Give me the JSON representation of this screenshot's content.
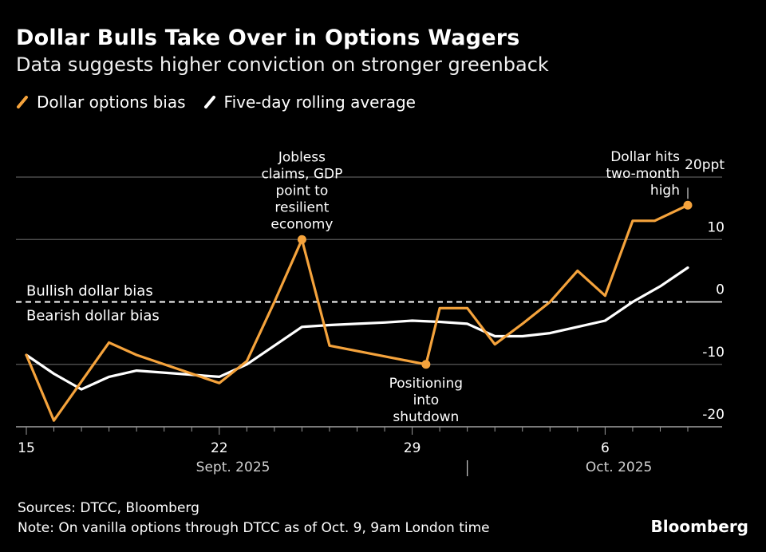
{
  "header": {
    "title": "Dollar Bulls Take Over in Options Wagers",
    "subtitle": "Data suggests higher conviction on stronger greenback"
  },
  "legend": [
    {
      "label": "Dollar options bias",
      "color": "#f5a33c"
    },
    {
      "label": "Five-day rolling average",
      "color": "#ffffff"
    }
  ],
  "footer": {
    "source": "Sources: DTCC, Bloomberg",
    "note": "Note: On vanilla options through DTCC as of Oct. 9, 9am London time",
    "brand": "Bloomberg"
  },
  "chart_data": {
    "type": "line",
    "title": "Dollar Bulls Take Over in Options Wagers",
    "ylabel": "ppt",
    "ylim": [
      -20,
      20
    ],
    "xlim": [
      15,
      39
    ],
    "y_ticks": [
      {
        "value": 20,
        "label": "20ppt"
      },
      {
        "value": 10,
        "label": "10"
      },
      {
        "value": 0,
        "label": "0"
      },
      {
        "value": -10,
        "label": "-10"
      },
      {
        "value": -20,
        "label": "-20"
      }
    ],
    "x_ticks": [
      {
        "day": 15,
        "label": "15"
      },
      {
        "day": 22,
        "label": "22"
      },
      {
        "day": 29,
        "label": "29"
      },
      {
        "day": 36,
        "label": "6"
      }
    ],
    "month_labels": [
      {
        "day": 22.5,
        "label": "Sept. 2025"
      },
      {
        "day": 36.5,
        "label": "Oct. 2025"
      }
    ],
    "month_separator_day": 31,
    "reference_labels": {
      "above": "Bullish dollar bias",
      "below": "Bearish dollar bias"
    },
    "series": [
      {
        "name": "Dollar options bias",
        "color": "#f5a33c",
        "x": [
          15,
          16,
          18,
          19,
          22,
          23,
          24,
          25,
          26,
          29.5,
          30,
          31,
          32,
          33,
          34,
          35,
          36,
          37,
          37.8,
          39
        ],
        "values": [
          -8.5,
          -19,
          -6.5,
          -8.5,
          -13,
          -9.5,
          0,
          10,
          -7,
          -10,
          -1,
          -1,
          -6.8,
          -3.5,
          0,
          5,
          1,
          13,
          13,
          15.5
        ]
      },
      {
        "name": "Five-day rolling average",
        "color": "#ffffff",
        "x": [
          15,
          16,
          17,
          18,
          19,
          22,
          23,
          24,
          25,
          26,
          27,
          28,
          29,
          30,
          31,
          32,
          33,
          34,
          35,
          36,
          37,
          38,
          39
        ],
        "values": [
          -8.5,
          -11.5,
          -14,
          -12,
          -11,
          -12,
          -10,
          -7,
          -4,
          -3.7,
          -3.5,
          -3.3,
          -3,
          -3.2,
          -3.5,
          -5.5,
          -5.5,
          -5,
          -4,
          -3,
          0,
          2.5,
          5.5
        ]
      }
    ],
    "annotations": [
      {
        "text": [
          "Jobless",
          "claims, GDP",
          "point to",
          "resilient",
          "economy"
        ],
        "series": 0,
        "x": 25,
        "y": 10,
        "position": "above"
      },
      {
        "text": [
          "Positioning",
          "into",
          "shutdown"
        ],
        "series": 0,
        "x": 29.5,
        "y": -10,
        "position": "below"
      },
      {
        "text": [
          "Dollar hits",
          "two-month",
          "high"
        ],
        "series": 0,
        "x": 39,
        "y": 15.5,
        "position": "above-left"
      }
    ]
  }
}
